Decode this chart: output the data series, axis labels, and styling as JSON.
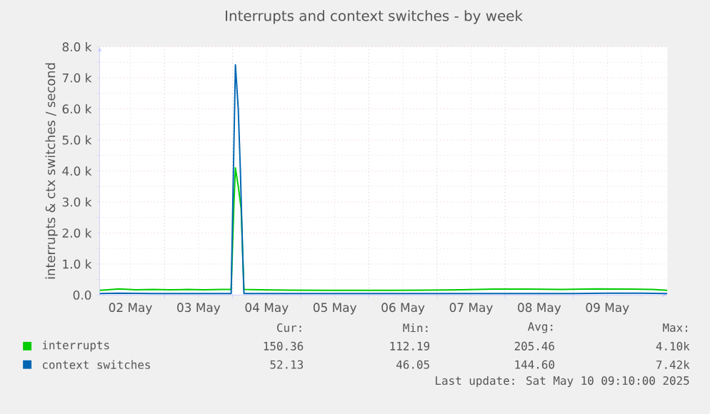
{
  "chart_data": {
    "type": "line",
    "title": "Interrupts and context switches - by week",
    "ylabel": "interrupts & ctx switches / second",
    "xlim": [
      "2025-05-02T01:10",
      "2025-05-10T09:10"
    ],
    "xticks": [
      {
        "value": "2025-05-02T12:00",
        "label": "02 May"
      },
      {
        "value": "2025-05-03T00:00",
        "label": null
      },
      {
        "value": "2025-05-03T12:00",
        "label": "03 May"
      },
      {
        "value": "2025-05-04T00:00",
        "label": null
      },
      {
        "value": "2025-05-04T12:00",
        "label": "04 May"
      },
      {
        "value": "2025-05-05T00:00",
        "label": null
      },
      {
        "value": "2025-05-05T12:00",
        "label": "05 May"
      },
      {
        "value": "2025-05-06T00:00",
        "label": null
      },
      {
        "value": "2025-05-06T12:00",
        "label": "06 May"
      },
      {
        "value": "2025-05-07T00:00",
        "label": null
      },
      {
        "value": "2025-05-07T12:00",
        "label": "07 May"
      },
      {
        "value": "2025-05-08T00:00",
        "label": null
      },
      {
        "value": "2025-05-08T12:00",
        "label": "08 May"
      },
      {
        "value": "2025-05-09T00:00",
        "label": null
      },
      {
        "value": "2025-05-09T12:00",
        "label": "09 May"
      },
      {
        "value": "2025-05-10T00:00",
        "label": null
      }
    ],
    "ylim": [
      0,
      8000
    ],
    "yticks": [
      {
        "value": 0,
        "label": "0.0"
      },
      {
        "value": 1000,
        "label": "1.0 k"
      },
      {
        "value": 2000,
        "label": "2.0 k"
      },
      {
        "value": 3000,
        "label": "3.0 k"
      },
      {
        "value": 4000,
        "label": "4.0 k"
      },
      {
        "value": 5000,
        "label": "5.0 k"
      },
      {
        "value": 6000,
        "label": "6.0 k"
      },
      {
        "value": 7000,
        "label": "7.0 k"
      },
      {
        "value": 8000,
        "label": "8.0 k"
      }
    ],
    "grid": true,
    "legend": "bottom left",
    "series": [
      {
        "name": "interrupts",
        "color": "#00cc00",
        "x": [
          "2025-05-02T01:10",
          "2025-05-02T04:00",
          "2025-05-02T08:00",
          "2025-05-02T14:00",
          "2025-05-02T20:00",
          "2025-05-03T02:00",
          "2025-05-03T08:00",
          "2025-05-03T14:00",
          "2025-05-03T20:00",
          "2025-05-03T23:30",
          "2025-05-04T00:30",
          "2025-05-04T01:00",
          "2025-05-04T02:00",
          "2025-05-04T03:00",
          "2025-05-04T04:00",
          "2025-05-04T10:00",
          "2025-05-04T20:00",
          "2025-05-05T08:00",
          "2025-05-05T20:00",
          "2025-05-06T08:00",
          "2025-05-06T20:00",
          "2025-05-07T08:00",
          "2025-05-07T20:00",
          "2025-05-08T08:00",
          "2025-05-08T20:00",
          "2025-05-09T08:00",
          "2025-05-09T20:00",
          "2025-05-10T04:00",
          "2025-05-10T09:10"
        ],
        "values": [
          150,
          170,
          200,
          170,
          180,
          170,
          180,
          170,
          180,
          180,
          3000,
          4100,
          3500,
          2800,
          180,
          170,
          160,
          150,
          150,
          150,
          160,
          170,
          190,
          190,
          180,
          200,
          190,
          180,
          150
        ]
      },
      {
        "name": "context switches",
        "color": "#0066b3",
        "x": [
          "2025-05-02T01:10",
          "2025-05-02T08:00",
          "2025-05-02T20:00",
          "2025-05-03T08:00",
          "2025-05-03T20:00",
          "2025-05-03T23:30",
          "2025-05-04T00:30",
          "2025-05-04T01:00",
          "2025-05-04T02:00",
          "2025-05-04T02:45",
          "2025-05-04T03:30",
          "2025-05-04T04:00",
          "2025-05-04T12:00",
          "2025-05-05T00:00",
          "2025-05-05T12:00",
          "2025-05-06T00:00",
          "2025-05-06T12:00",
          "2025-05-07T00:00",
          "2025-05-07T12:00",
          "2025-05-08T00:00",
          "2025-05-08T12:00",
          "2025-05-09T00:00",
          "2025-05-09T12:00",
          "2025-05-10T00:00",
          "2025-05-10T09:10"
        ],
        "values": [
          50,
          60,
          50,
          50,
          50,
          50,
          5000,
          7420,
          6000,
          4000,
          1500,
          50,
          50,
          50,
          50,
          50,
          50,
          50,
          50,
          50,
          50,
          50,
          60,
          60,
          50
        ]
      }
    ],
    "annotations": [
      "Cur:",
      "Min:",
      "Avg:",
      "Max:",
      "150.36",
      "112.19",
      "205.46",
      "4.10k",
      "52.13",
      "46.05",
      "144.60",
      "7.42k",
      "Last update: Sat May 10 09:10:00 2025"
    ]
  }
}
